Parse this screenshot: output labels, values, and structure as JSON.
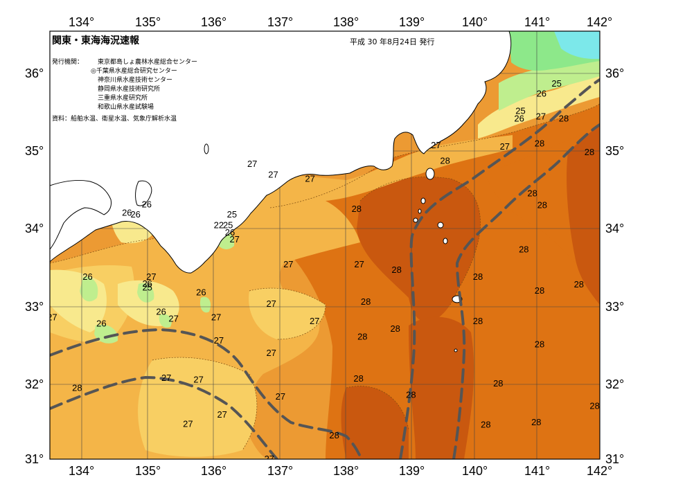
{
  "header": {
    "title": "関東・東海海況速報",
    "issue": "平成 30 年8月24日 発行",
    "issuers_label": "発行機関：",
    "issuers": [
      "東京都島しょ農林水産総合センター",
      "◎千葉県水産総合研究センター",
      "神奈川県水産技術センター",
      "静岡県水産技術研究所",
      "三重県水産研究所",
      "和歌山県水産試験場"
    ],
    "source": "資料：船舶水温、衛星水温、気象庁解析水温"
  },
  "axes": {
    "x_ticks": [
      "134°",
      "135°",
      "136°",
      "137°",
      "138°",
      "139°",
      "140°",
      "141°",
      "142°"
    ],
    "y_ticks": [
      "36°",
      "35°",
      "34°",
      "33°",
      "32°",
      "31°"
    ]
  },
  "isotherm_labels": [
    {
      "text": "25",
      "lon": 141.24,
      "lat": 35.86
    },
    {
      "text": "26",
      "lon": 141.01,
      "lat": 35.73
    },
    {
      "text": "25",
      "lon": 140.69,
      "lat": 35.51
    },
    {
      "text": "26",
      "lon": 140.67,
      "lat": 35.41
    },
    {
      "text": "27",
      "lon": 141.0,
      "lat": 35.44
    },
    {
      "text": "28",
      "lon": 141.35,
      "lat": 35.41
    },
    {
      "text": "27",
      "lon": 139.4,
      "lat": 35.07
    },
    {
      "text": "27",
      "lon": 140.45,
      "lat": 35.05
    },
    {
      "text": "28",
      "lon": 140.98,
      "lat": 35.09
    },
    {
      "text": "28",
      "lon": 141.74,
      "lat": 34.98
    },
    {
      "text": "28",
      "lon": 139.54,
      "lat": 34.87
    },
    {
      "text": "27",
      "lon": 136.6,
      "lat": 34.83
    },
    {
      "text": "27",
      "lon": 136.92,
      "lat": 34.69
    },
    {
      "text": "27",
      "lon": 137.48,
      "lat": 34.64
    },
    {
      "text": "28",
      "lon": 140.87,
      "lat": 34.45
    },
    {
      "text": "28",
      "lon": 141.02,
      "lat": 34.3
    },
    {
      "text": "28",
      "lon": 138.19,
      "lat": 34.25
    },
    {
      "text": "26",
      "lon": 134.99,
      "lat": 34.31
    },
    {
      "text": "26",
      "lon": 134.69,
      "lat": 34.2
    },
    {
      "text": "26",
      "lon": 134.82,
      "lat": 34.18
    },
    {
      "text": "25",
      "lon": 136.29,
      "lat": 34.18
    },
    {
      "text": "22",
      "lon": 136.09,
      "lat": 34.04
    },
    {
      "text": "25",
      "lon": 136.23,
      "lat": 34.04
    },
    {
      "text": "26",
      "lon": 136.26,
      "lat": 33.95
    },
    {
      "text": "27",
      "lon": 136.33,
      "lat": 33.86
    },
    {
      "text": "28",
      "lon": 140.74,
      "lat": 33.73
    },
    {
      "text": "27",
      "lon": 137.15,
      "lat": 33.54
    },
    {
      "text": "27",
      "lon": 138.23,
      "lat": 33.54
    },
    {
      "text": "28",
      "lon": 138.8,
      "lat": 33.47
    },
    {
      "text": "28",
      "lon": 140.04,
      "lat": 33.38
    },
    {
      "text": "26",
      "lon": 134.09,
      "lat": 33.38
    },
    {
      "text": "27",
      "lon": 135.06,
      "lat": 33.38
    },
    {
      "text": "26",
      "lon": 135.0,
      "lat": 33.29
    },
    {
      "text": "25",
      "lon": 135.0,
      "lat": 33.24
    },
    {
      "text": "28",
      "lon": 141.58,
      "lat": 33.28
    },
    {
      "text": "28",
      "lon": 140.98,
      "lat": 33.2
    },
    {
      "text": "26",
      "lon": 135.82,
      "lat": 33.18
    },
    {
      "text": "27",
      "lon": 136.89,
      "lat": 33.03
    },
    {
      "text": "28",
      "lon": 138.33,
      "lat": 33.06
    },
    {
      "text": "26",
      "lon": 135.21,
      "lat": 32.93
    },
    {
      "text": "27",
      "lon": 135.4,
      "lat": 32.84
    },
    {
      "text": "27",
      "lon": 136.05,
      "lat": 32.86
    },
    {
      "text": "27",
      "lon": 137.55,
      "lat": 32.81
    },
    {
      "text": "28",
      "lon": 140.04,
      "lat": 32.81
    },
    {
      "text": "26",
      "lon": 134.3,
      "lat": 32.78
    },
    {
      "text": "27",
      "lon": 133.55,
      "lat": 32.86
    },
    {
      "text": "28",
      "lon": 138.78,
      "lat": 32.71
    },
    {
      "text": "28",
      "lon": 138.28,
      "lat": 32.61
    },
    {
      "text": "27",
      "lon": 136.09,
      "lat": 32.56
    },
    {
      "text": "28",
      "lon": 140.98,
      "lat": 32.51
    },
    {
      "text": "27",
      "lon": 136.89,
      "lat": 32.4
    },
    {
      "text": "27",
      "lon": 135.29,
      "lat": 32.08
    },
    {
      "text": "27",
      "lon": 135.78,
      "lat": 32.06
    },
    {
      "text": "28",
      "lon": 138.22,
      "lat": 32.07
    },
    {
      "text": "28",
      "lon": 140.35,
      "lat": 32.01
    },
    {
      "text": "28",
      "lon": 133.93,
      "lat": 31.95
    },
    {
      "text": "27",
      "lon": 137.03,
      "lat": 31.84
    },
    {
      "text": "28",
      "lon": 139.02,
      "lat": 31.86
    },
    {
      "text": "28",
      "lon": 141.82,
      "lat": 31.72
    },
    {
      "text": "27",
      "lon": 136.14,
      "lat": 31.61
    },
    {
      "text": "28",
      "lon": 140.16,
      "lat": 31.48
    },
    {
      "text": "28",
      "lon": 140.93,
      "lat": 31.51
    },
    {
      "text": "27",
      "lon": 135.62,
      "lat": 31.49
    },
    {
      "text": "28",
      "lon": 137.85,
      "lat": 31.34
    },
    {
      "text": "27",
      "lon": 136.86,
      "lat": 31.04
    }
  ],
  "colors": {
    "t28_deep": "#c9580f",
    "t28": "#de7313",
    "t28_light": "#ec9a33",
    "t27": "#f4b548",
    "t27_light": "#f8cf63",
    "t26": "#f8e98d",
    "t25": "#bfee8e",
    "t24": "#8de88a",
    "t22": "#7ce8ea",
    "land": "#ffffff",
    "kuroshio": "#555555"
  }
}
